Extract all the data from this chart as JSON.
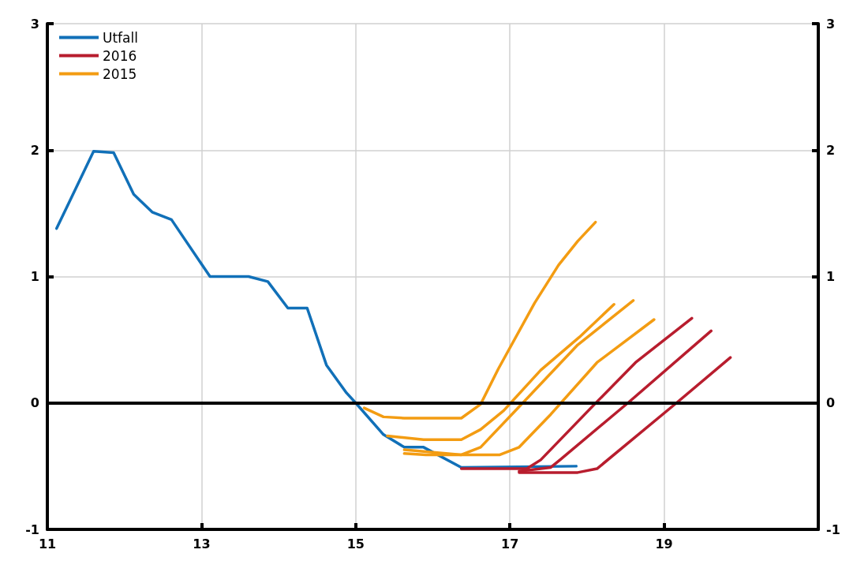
{
  "chart_data": {
    "type": "line",
    "xlim": [
      11,
      21
    ],
    "xticks": [
      11,
      13,
      15,
      17,
      19
    ],
    "ylim": [
      -1,
      3
    ],
    "yticks": [
      -1,
      0,
      1,
      2,
      3
    ],
    "y2lim": [
      -1,
      3
    ],
    "y2ticks": [
      -1,
      0,
      1,
      2,
      3
    ],
    "grid": true,
    "legend": "top left",
    "marker": "none",
    "line_style": "solid",
    "ref_lines": [
      {
        "axis": "y",
        "value": 0,
        "color": "#000000"
      }
    ],
    "series": [
      {
        "name": "Utfall",
        "color": "#1170b8",
        "x": [
          11.12,
          11.6,
          11.86,
          12.12,
          12.36,
          12.61,
          13.11,
          13.61,
          13.86,
          14.12,
          14.37,
          14.62,
          14.88,
          15.0,
          15.36,
          15.63,
          15.88,
          16.37,
          17.86
        ],
        "values": [
          1.38,
          1.99,
          1.98,
          1.65,
          1.51,
          1.45,
          1.0,
          1.0,
          0.96,
          0.75,
          0.75,
          0.3,
          0.08,
          0,
          -0.25,
          -0.35,
          -0.35,
          -0.51,
          -0.5
        ]
      },
      {
        "name": "2016",
        "color": "#b81d2e",
        "x": [
          16.37,
          17.22,
          17.4,
          18.13,
          18.63,
          19.36
        ],
        "values": [
          -0.52,
          -0.52,
          -0.45,
          0.01,
          0.32,
          0.67
        ]
      },
      {
        "color": "#b81d2e",
        "x": [
          17.12,
          17.53,
          17.65,
          18.53,
          19.61
        ],
        "values": [
          -0.54,
          -0.51,
          -0.45,
          0,
          0.57
        ]
      },
      {
        "color": "#b81d2e",
        "x": [
          17.12,
          17.88,
          18.13,
          19.16,
          19.86
        ],
        "values": [
          -0.55,
          -0.55,
          -0.52,
          0,
          0.36
        ]
      },
      {
        "name": "2015",
        "color": "#f39c12",
        "x": [
          15.11,
          15.36,
          15.63,
          16.37,
          16.62,
          16.85,
          17.32,
          17.63,
          17.88,
          18.11
        ],
        "values": [
          -0.04,
          -0.11,
          -0.12,
          -0.12,
          -0.01,
          0.27,
          0.79,
          1.09,
          1.28,
          1.43
        ]
      },
      {
        "color": "#f39c12",
        "x": [
          15.41,
          15.88,
          16.37,
          16.62,
          16.92,
          17.4,
          17.9,
          18.35
        ],
        "values": [
          -0.26,
          -0.29,
          -0.29,
          -0.21,
          -0.06,
          0.26,
          0.52,
          0.78
        ]
      },
      {
        "color": "#f39c12",
        "x": [
          15.63,
          16.37,
          16.62,
          17.12,
          17.88,
          18.6
        ],
        "values": [
          -0.37,
          -0.41,
          -0.35,
          -0.03,
          0.46,
          0.81
        ]
      },
      {
        "color": "#f39c12",
        "x": [
          15.63,
          15.91,
          16.87,
          17.12,
          17.53,
          18.13,
          18.87
        ],
        "values": [
          -0.4,
          -0.41,
          -0.41,
          -0.35,
          -0.09,
          0.32,
          0.66
        ]
      }
    ]
  }
}
